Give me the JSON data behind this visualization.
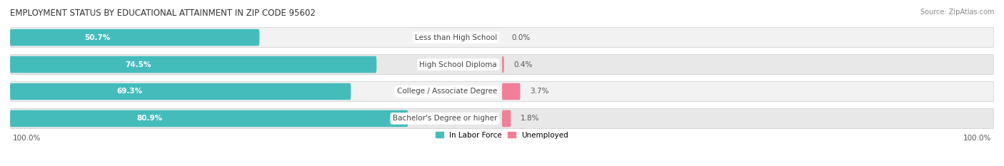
{
  "title": "EMPLOYMENT STATUS BY EDUCATIONAL ATTAINMENT IN ZIP CODE 95602",
  "source": "Source: ZipAtlas.com",
  "categories": [
    "Less than High School",
    "High School Diploma",
    "College / Associate Degree",
    "Bachelor's Degree or higher"
  ],
  "labor_force": [
    50.7,
    74.5,
    69.3,
    80.9
  ],
  "unemployed": [
    0.0,
    0.4,
    3.7,
    1.8
  ],
  "labor_force_color": "#45BCBC",
  "unemployed_color": "#F08098",
  "row_light_color": "#F2F2F2",
  "row_dark_color": "#E8E8E8",
  "title_fontsize": 8.5,
  "label_fontsize": 7.5,
  "tick_fontsize": 7.5,
  "source_fontsize": 7,
  "bar_label_color": "white",
  "cat_label_color": "#444444",
  "pct_label_color": "#555555",
  "left_label": "100.0%",
  "right_label": "100.0%"
}
